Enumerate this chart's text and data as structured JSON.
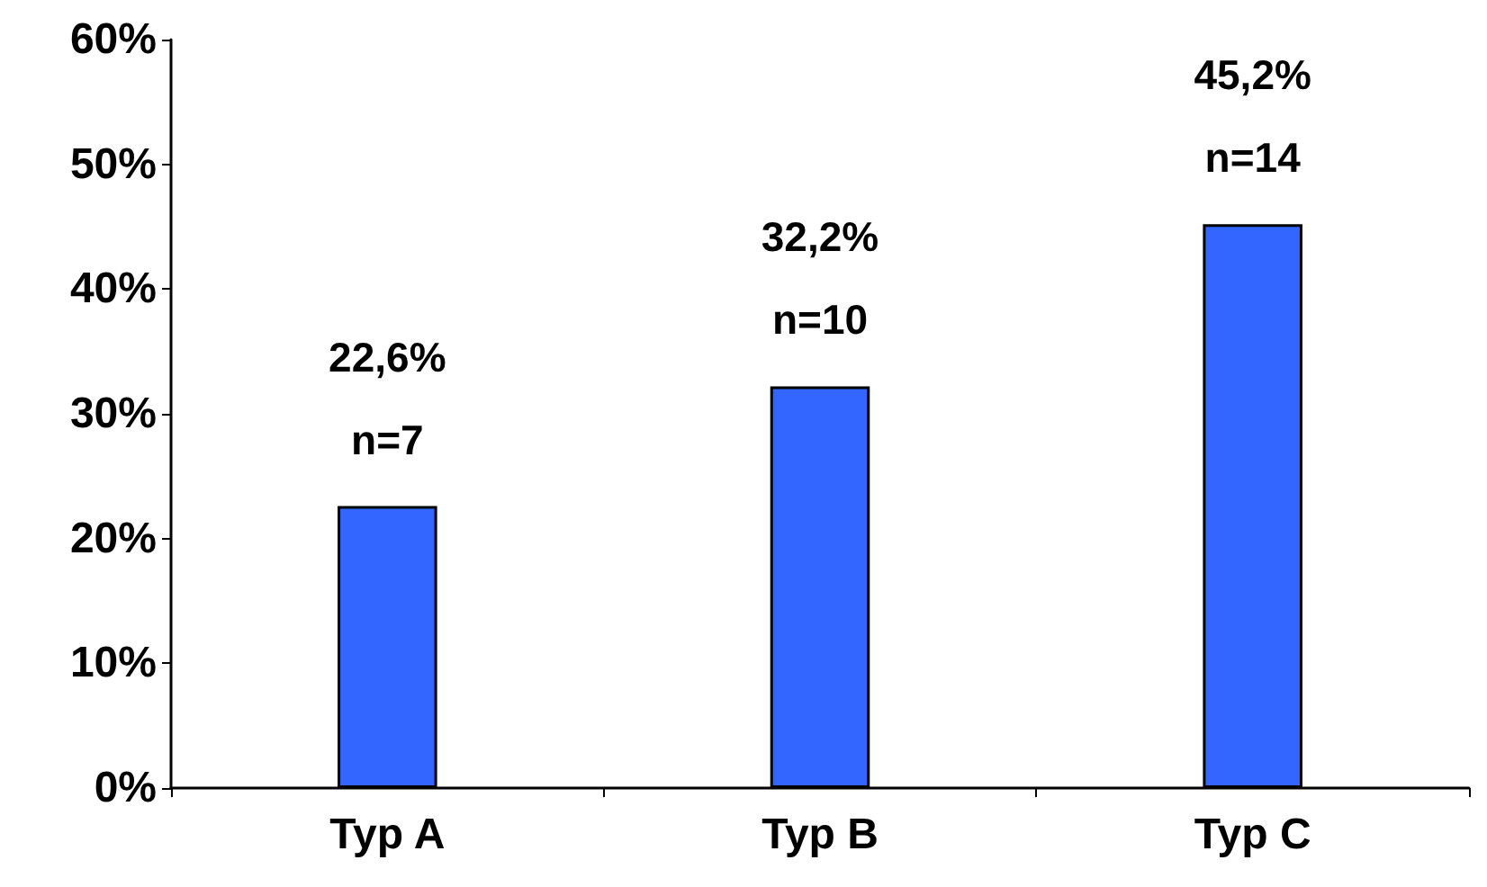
{
  "chart_data": {
    "type": "bar",
    "categories": [
      "Typ A",
      "Typ B",
      "Typ C"
    ],
    "values": [
      22.6,
      32.2,
      45.2
    ],
    "color": "#3366ff",
    "value_labels": [
      "22,6%\nn=7",
      "32,2%\nn=10",
      "45,2%\nn=14"
    ],
    "ylim": [
      0,
      60
    ],
    "yticks": [
      {
        "value": 0,
        "label": "0%"
      },
      {
        "value": 10,
        "label": "10%"
      },
      {
        "value": 20,
        "label": "20%"
      },
      {
        "value": 30,
        "label": "30%"
      },
      {
        "value": 40,
        "label": "40%"
      },
      {
        "value": 50,
        "label": "50%"
      },
      {
        "value": 60,
        "label": "60%"
      }
    ],
    "grid": false
  }
}
